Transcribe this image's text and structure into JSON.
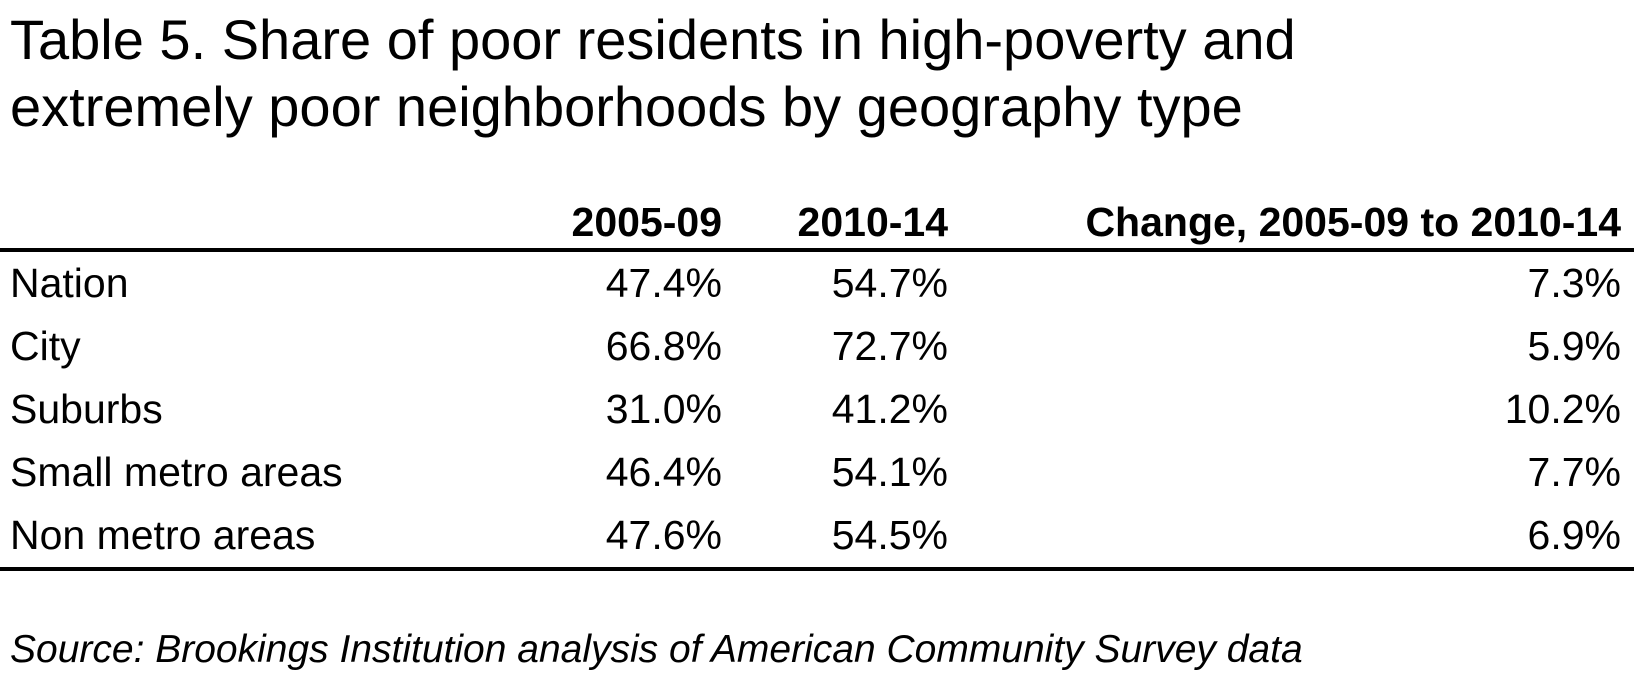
{
  "title_line1": "Table 5. Share of poor residents in high-poverty and",
  "title_line2": "extremely poor neighborhoods by geography type",
  "columns": [
    "",
    "2005-09",
    "2010-14",
    "Change, 2005-09 to 2010-14"
  ],
  "rows": [
    {
      "label": "Nation",
      "v1": "47.4%",
      "v2": "54.7%",
      "change": "7.3%"
    },
    {
      "label": "City",
      "v1": "66.8%",
      "v2": "72.7%",
      "change": "5.9%"
    },
    {
      "label": "Suburbs",
      "v1": "31.0%",
      "v2": "41.2%",
      "change": "10.2%"
    },
    {
      "label": "Small metro areas",
      "v1": "46.4%",
      "v2": "54.1%",
      "change": "7.7%"
    },
    {
      "label": "Non metro areas",
      "v1": "47.6%",
      "v2": "54.5%",
      "change": "6.9%"
    }
  ],
  "source": "Source: Brookings Institution analysis of American Community Survey data"
}
